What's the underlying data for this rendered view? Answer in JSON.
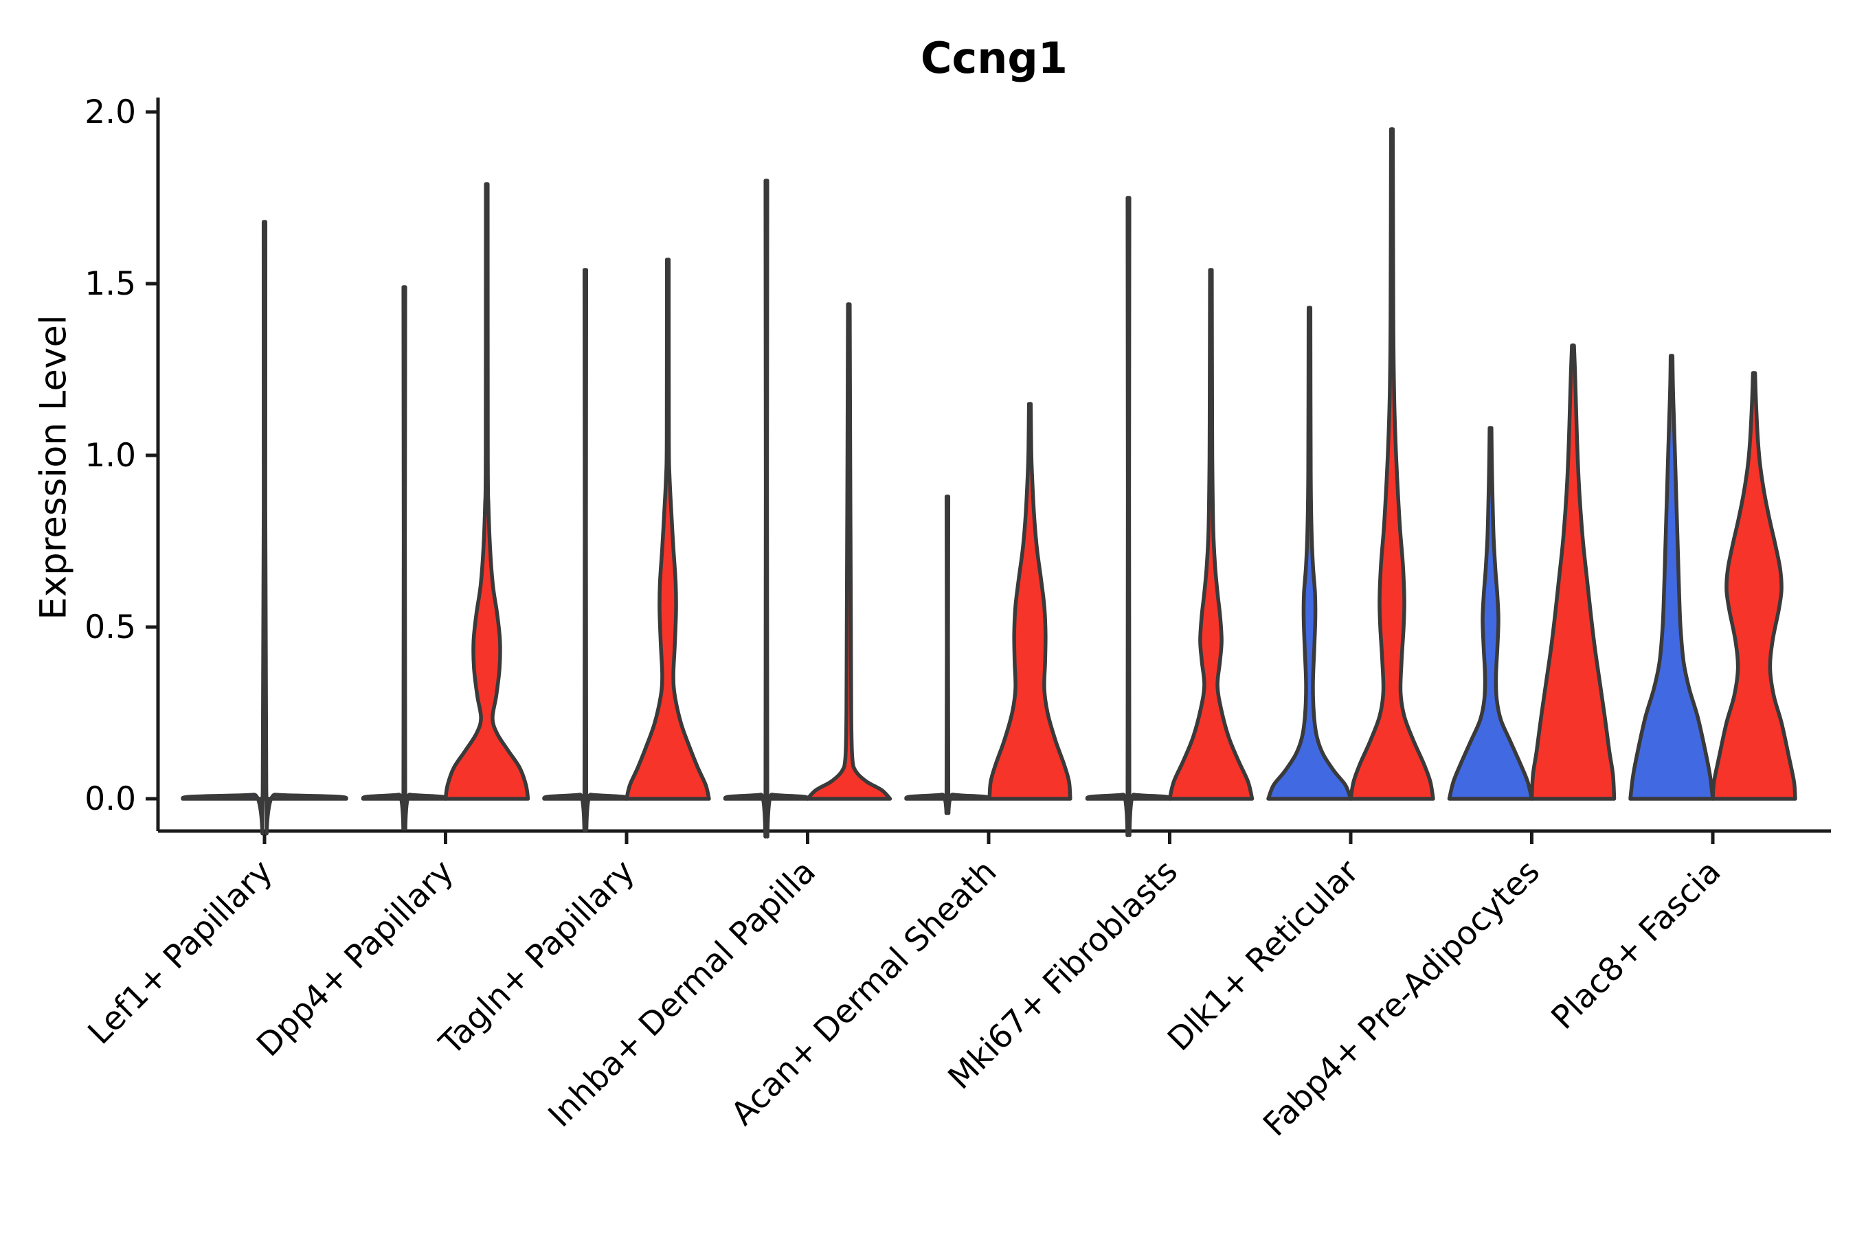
{
  "title": "Ccng1",
  "y_axis": {
    "label": "Expression Level",
    "tick_labels": [
      "0.0",
      "0.5",
      "1.0",
      "1.5",
      "2.0"
    ]
  },
  "colors": {
    "blue": "#4169E1",
    "red": "#F6342A",
    "edge": "#3A3A3A",
    "axis": "#1a1a1a",
    "text": "#000000"
  },
  "chart_data": {
    "type": "violin",
    "title": "Ccng1",
    "xlabel": "",
    "ylabel": "Expression Level",
    "ylim": [
      0,
      2.05
    ],
    "yticks": [
      0.0,
      0.5,
      1.0,
      1.5,
      2.0
    ],
    "grid": false,
    "legend": "none",
    "categories": [
      "Lef1+ Papillary",
      "Dpp4+ Papillary",
      "Tagln+ Papillary",
      "Inhba+ Dermal Papilla",
      "Acan+ Dermal Sheath",
      "Mki67+ Fibroblasts",
      "Dlk1+ Reticular",
      "Fabp4+ Pre-Adipocytes",
      "Plac8+ Fascia"
    ],
    "violins": [
      {
        "category_index": 0,
        "side": "single",
        "color_key": "blue",
        "max_expression": 1.68,
        "density_profile": [
          [
            0,
            1.0
          ],
          [
            0.006,
            0.9
          ],
          [
            0.012,
            0.13
          ],
          [
            0.025,
            0.022
          ],
          [
            1.68,
            0.011
          ]
        ]
      },
      {
        "category_index": 1,
        "side": "left",
        "color_key": "blue",
        "max_expression": 1.49,
        "density_profile": [
          [
            0,
            1.0
          ],
          [
            0.006,
            0.9
          ],
          [
            0.012,
            0.13
          ],
          [
            0.025,
            0.022
          ],
          [
            1.49,
            0.022
          ]
        ]
      },
      {
        "category_index": 1,
        "side": "right",
        "color_key": "red",
        "max_expression": 1.79,
        "density_profile": [
          [
            0,
            1.0
          ],
          [
            0.04,
            0.95
          ],
          [
            0.09,
            0.8
          ],
          [
            0.14,
            0.52
          ],
          [
            0.19,
            0.25
          ],
          [
            0.235,
            0.14
          ],
          [
            0.3,
            0.23
          ],
          [
            0.38,
            0.31
          ],
          [
            0.46,
            0.32
          ],
          [
            0.54,
            0.25
          ],
          [
            0.62,
            0.15
          ],
          [
            0.72,
            0.085
          ],
          [
            0.85,
            0.042
          ],
          [
            1.0,
            0.025
          ],
          [
            1.79,
            0.022
          ]
        ]
      },
      {
        "category_index": 2,
        "side": "left",
        "color_key": "blue",
        "max_expression": 1.54,
        "density_profile": [
          [
            0,
            1.0
          ],
          [
            0.006,
            0.9
          ],
          [
            0.012,
            0.13
          ],
          [
            0.025,
            0.022
          ],
          [
            1.54,
            0.022
          ]
        ]
      },
      {
        "category_index": 2,
        "side": "right",
        "color_key": "red",
        "max_expression": 1.57,
        "density_profile": [
          [
            0,
            1.0
          ],
          [
            0.04,
            0.92
          ],
          [
            0.09,
            0.73
          ],
          [
            0.15,
            0.53
          ],
          [
            0.22,
            0.32
          ],
          [
            0.3,
            0.17
          ],
          [
            0.36,
            0.135
          ],
          [
            0.45,
            0.17
          ],
          [
            0.55,
            0.2
          ],
          [
            0.63,
            0.19
          ],
          [
            0.73,
            0.135
          ],
          [
            0.84,
            0.083
          ],
          [
            0.94,
            0.042
          ],
          [
            1.05,
            0.025
          ],
          [
            1.57,
            0.022
          ]
        ]
      },
      {
        "category_index": 3,
        "side": "left",
        "color_key": "blue",
        "max_expression": 1.8,
        "density_profile": [
          [
            0,
            1.0
          ],
          [
            0.006,
            0.9
          ],
          [
            0.012,
            0.13
          ],
          [
            0.025,
            0.022
          ],
          [
            1.8,
            0.022
          ]
        ]
      },
      {
        "category_index": 3,
        "side": "right",
        "color_key": "red",
        "max_expression": 1.44,
        "density_profile": [
          [
            0,
            1.0
          ],
          [
            0.025,
            0.8
          ],
          [
            0.05,
            0.43
          ],
          [
            0.08,
            0.17
          ],
          [
            0.12,
            0.083
          ],
          [
            0.25,
            0.058
          ],
          [
            0.5,
            0.05
          ],
          [
            0.75,
            0.042
          ],
          [
            1.0,
            0.033
          ],
          [
            1.44,
            0.022
          ]
        ]
      },
      {
        "category_index": 4,
        "side": "left",
        "color_key": "blue",
        "max_expression": 0.88,
        "density_profile": [
          [
            0,
            1.0
          ],
          [
            0.006,
            0.9
          ],
          [
            0.012,
            0.13
          ],
          [
            0.025,
            0.022
          ],
          [
            0.88,
            0.022
          ]
        ]
      },
      {
        "category_index": 4,
        "side": "right",
        "color_key": "red",
        "max_expression": 1.15,
        "density_profile": [
          [
            0,
            0.98
          ],
          [
            0.05,
            0.95
          ],
          [
            0.1,
            0.83
          ],
          [
            0.17,
            0.62
          ],
          [
            0.25,
            0.43
          ],
          [
            0.32,
            0.35
          ],
          [
            0.4,
            0.37
          ],
          [
            0.48,
            0.38
          ],
          [
            0.56,
            0.35
          ],
          [
            0.64,
            0.27
          ],
          [
            0.73,
            0.17
          ],
          [
            0.83,
            0.1
          ],
          [
            0.95,
            0.05
          ],
          [
            1.02,
            0.033
          ],
          [
            1.15,
            0.022
          ]
        ]
      },
      {
        "category_index": 5,
        "side": "left",
        "color_key": "blue",
        "max_expression": 1.75,
        "density_profile": [
          [
            0,
            1.0
          ],
          [
            0.006,
            0.9
          ],
          [
            0.012,
            0.13
          ],
          [
            0.025,
            0.022
          ],
          [
            1.75,
            0.022
          ]
        ]
      },
      {
        "category_index": 5,
        "side": "right",
        "color_key": "red",
        "max_expression": 1.54,
        "density_profile": [
          [
            0,
            1.0
          ],
          [
            0.05,
            0.9
          ],
          [
            0.11,
            0.67
          ],
          [
            0.18,
            0.43
          ],
          [
            0.26,
            0.25
          ],
          [
            0.33,
            0.16
          ],
          [
            0.4,
            0.22
          ],
          [
            0.46,
            0.26
          ],
          [
            0.53,
            0.225
          ],
          [
            0.6,
            0.16
          ],
          [
            0.68,
            0.1
          ],
          [
            0.78,
            0.058
          ],
          [
            0.95,
            0.037
          ],
          [
            1.1,
            0.03
          ],
          [
            1.54,
            0.022
          ]
        ]
      },
      {
        "category_index": 6,
        "side": "left",
        "color_key": "blue",
        "max_expression": 1.43,
        "density_profile": [
          [
            0,
            1.0
          ],
          [
            0.04,
            0.87
          ],
          [
            0.08,
            0.6
          ],
          [
            0.13,
            0.33
          ],
          [
            0.18,
            0.18
          ],
          [
            0.24,
            0.11
          ],
          [
            0.33,
            0.083
          ],
          [
            0.44,
            0.117
          ],
          [
            0.53,
            0.142
          ],
          [
            0.6,
            0.133
          ],
          [
            0.68,
            0.083
          ],
          [
            0.78,
            0.05
          ],
          [
            0.95,
            0.03
          ],
          [
            1.43,
            0.022
          ]
        ]
      },
      {
        "category_index": 6,
        "side": "right",
        "color_key": "red",
        "max_expression": 1.95,
        "density_profile": [
          [
            0,
            1.0
          ],
          [
            0.05,
            0.93
          ],
          [
            0.1,
            0.78
          ],
          [
            0.17,
            0.52
          ],
          [
            0.24,
            0.3
          ],
          [
            0.31,
            0.21
          ],
          [
            0.4,
            0.233
          ],
          [
            0.5,
            0.283
          ],
          [
            0.58,
            0.3
          ],
          [
            0.68,
            0.267
          ],
          [
            0.78,
            0.2
          ],
          [
            0.88,
            0.15
          ],
          [
            0.98,
            0.108
          ],
          [
            1.08,
            0.075
          ],
          [
            1.2,
            0.05
          ],
          [
            1.4,
            0.033
          ],
          [
            1.95,
            0.022
          ]
        ]
      },
      {
        "category_index": 7,
        "side": "left",
        "color_key": "blue",
        "max_expression": 1.08,
        "density_profile": [
          [
            0,
            1.0
          ],
          [
            0.05,
            0.9
          ],
          [
            0.1,
            0.73
          ],
          [
            0.17,
            0.47
          ],
          [
            0.23,
            0.25
          ],
          [
            0.29,
            0.15
          ],
          [
            0.36,
            0.133
          ],
          [
            0.44,
            0.167
          ],
          [
            0.52,
            0.192
          ],
          [
            0.59,
            0.167
          ],
          [
            0.67,
            0.117
          ],
          [
            0.76,
            0.075
          ],
          [
            0.87,
            0.05
          ],
          [
            0.97,
            0.033
          ],
          [
            1.08,
            0.022
          ]
        ]
      },
      {
        "category_index": 7,
        "side": "right",
        "color_key": "red",
        "max_expression": 1.32,
        "density_profile": [
          [
            0,
            1.0
          ],
          [
            0.07,
            0.97
          ],
          [
            0.14,
            0.88
          ],
          [
            0.24,
            0.77
          ],
          [
            0.34,
            0.65
          ],
          [
            0.44,
            0.53
          ],
          [
            0.54,
            0.43
          ],
          [
            0.64,
            0.34
          ],
          [
            0.74,
            0.25
          ],
          [
            0.84,
            0.183
          ],
          [
            0.94,
            0.133
          ],
          [
            1.04,
            0.1
          ],
          [
            1.14,
            0.075
          ],
          [
            1.24,
            0.05
          ],
          [
            1.32,
            0.025
          ]
        ]
      },
      {
        "category_index": 8,
        "side": "left",
        "color_key": "blue",
        "max_expression": 1.29,
        "density_profile": [
          [
            0,
            1.0
          ],
          [
            0.07,
            0.93
          ],
          [
            0.15,
            0.8
          ],
          [
            0.24,
            0.63
          ],
          [
            0.32,
            0.43
          ],
          [
            0.4,
            0.29
          ],
          [
            0.5,
            0.217
          ],
          [
            0.6,
            0.183
          ],
          [
            0.7,
            0.158
          ],
          [
            0.8,
            0.133
          ],
          [
            0.9,
            0.108
          ],
          [
            1.0,
            0.083
          ],
          [
            1.1,
            0.058
          ],
          [
            1.2,
            0.033
          ],
          [
            1.29,
            0.022
          ]
        ]
      },
      {
        "category_index": 8,
        "side": "right",
        "color_key": "red",
        "max_expression": 1.24,
        "density_profile": [
          [
            0,
            1.0
          ],
          [
            0.05,
            0.97
          ],
          [
            0.12,
            0.85
          ],
          [
            0.22,
            0.67
          ],
          [
            0.3,
            0.48
          ],
          [
            0.38,
            0.39
          ],
          [
            0.46,
            0.45
          ],
          [
            0.55,
            0.6
          ],
          [
            0.61,
            0.667
          ],
          [
            0.67,
            0.633
          ],
          [
            0.74,
            0.517
          ],
          [
            0.81,
            0.383
          ],
          [
            0.89,
            0.25
          ],
          [
            0.97,
            0.15
          ],
          [
            1.05,
            0.092
          ],
          [
            1.15,
            0.05
          ],
          [
            1.24,
            0.025
          ]
        ]
      }
    ]
  }
}
